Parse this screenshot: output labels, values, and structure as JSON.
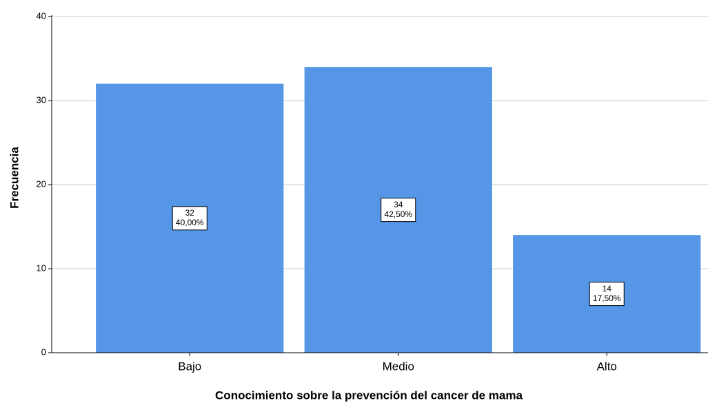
{
  "chart_data": {
    "type": "bar",
    "x_label": "Conocimiento sobre la prevención del cancer de mama",
    "y_label": "Frecuencia",
    "categories": [
      "Bajo",
      "Medio",
      "Alto"
    ],
    "values": [
      32,
      34,
      14
    ],
    "percentages": [
      40,
      42.5,
      17.5
    ],
    "percentage_labels": [
      "40,00%",
      "42,50%",
      "17,50%"
    ],
    "color": "#5596e6",
    "ylim": [
      0,
      40
    ],
    "yticks": [
      0,
      10,
      20,
      30,
      40
    ],
    "grid": true
  }
}
